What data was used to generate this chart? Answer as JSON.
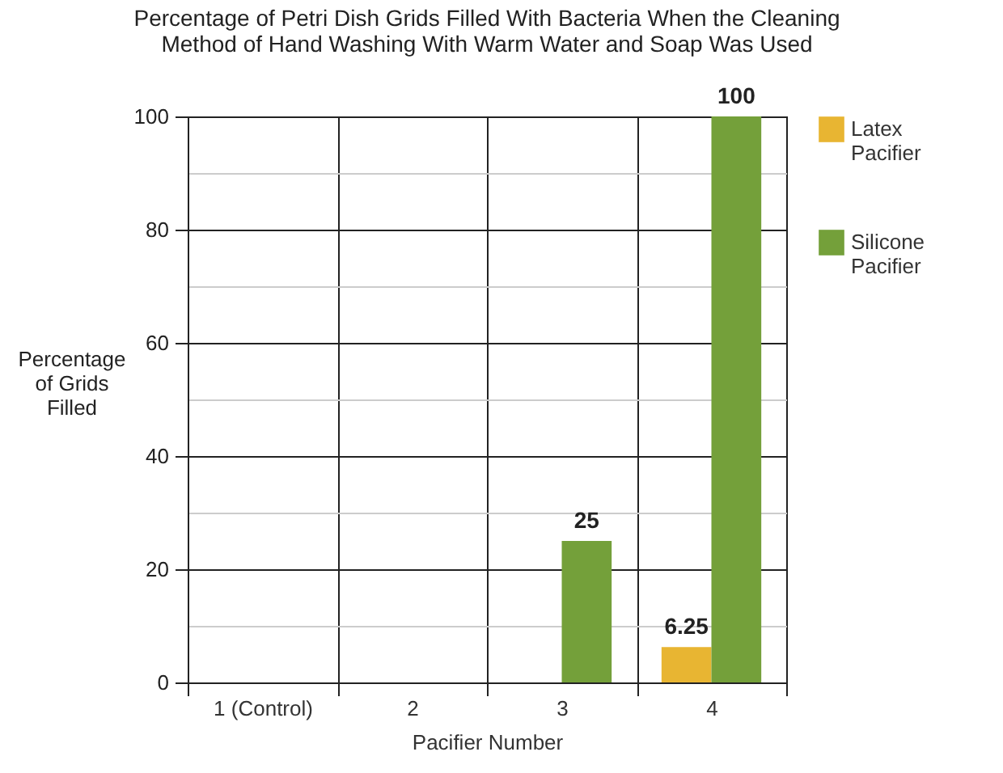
{
  "chart_data": {
    "type": "bar",
    "title": "Percentage of Petri Dish Grids Filled With Bacteria When the Cleaning Method of Hand Washing With Warm Water and Soap Was Used",
    "xlabel": "Pacifier Number",
    "ylabel": "Percentage of Grids Filled",
    "categories": [
      "1 (Control)",
      "2",
      "3",
      "4"
    ],
    "series": [
      {
        "name": "Latex Pacifier",
        "color": "#e8b532",
        "values": [
          0,
          0,
          0,
          6.25
        ],
        "value_labels": [
          null,
          null,
          null,
          "6.25"
        ]
      },
      {
        "name": "Silicone Pacifier",
        "color": "#74a03a",
        "values": [
          0,
          0,
          25,
          100
        ],
        "value_labels": [
          null,
          null,
          "25",
          "100"
        ]
      }
    ],
    "ylim": [
      0,
      100
    ],
    "yticks": [
      0,
      {
        "value": 10,
        "label": null
      },
      20,
      {
        "value": 30,
        "label": null
      },
      40,
      {
        "value": 50,
        "label": null
      },
      60,
      {
        "value": 70,
        "label": null
      },
      80,
      {
        "value": 90,
        "label": null
      },
      100
    ],
    "grid": true,
    "legend": "right"
  }
}
